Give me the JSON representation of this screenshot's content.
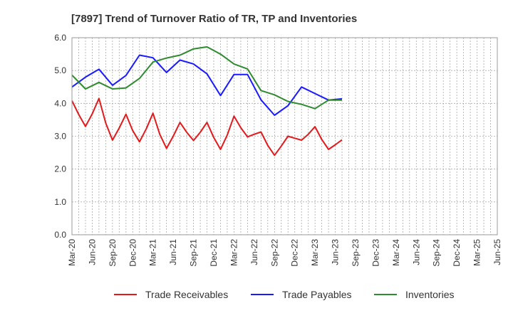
{
  "chart_data": {
    "type": "line",
    "title": "[7897]  Trend of Turnover Ratio of TR, TP and Inventories",
    "xlabel": "",
    "ylabel": "",
    "ylim": [
      0,
      6
    ],
    "yticks": [
      "0.0",
      "1.0",
      "2.0",
      "3.0",
      "4.0",
      "5.0",
      "6.0"
    ],
    "xtick_labels": [
      "Mar-20",
      "Jun-20",
      "Sep-20",
      "Dec-20",
      "Mar-21",
      "Jun-21",
      "Sep-21",
      "Dec-21",
      "Mar-22",
      "Jun-22",
      "Sep-22",
      "Dec-22",
      "Mar-23",
      "Jun-23",
      "Sep-23",
      "Dec-23",
      "Mar-24",
      "Jun-24",
      "Sep-24",
      "Dec-24",
      "Mar-25",
      "Jun-25"
    ],
    "grid": true,
    "legend_position": "bottom",
    "series": [
      {
        "name": "Trade Receivables",
        "color": "#e31a1c",
        "values": [
          4.08,
          3.66,
          3.3,
          3.68,
          4.15,
          3.4,
          2.88,
          3.25,
          3.67,
          3.17,
          2.83,
          3.22,
          3.7,
          3.06,
          2.63,
          3.0,
          3.42,
          3.12,
          2.87,
          3.12,
          3.42,
          2.96,
          2.6,
          3.04,
          3.61,
          3.26,
          2.98,
          3.06,
          3.13,
          2.72,
          2.42,
          2.7,
          3.0,
          2.94,
          2.88,
          3.06,
          3.29,
          2.9,
          2.6,
          2.74,
          2.89
        ]
      },
      {
        "name": "Trade Payables",
        "color": "#1a1aff",
        "values": [
          4.5,
          null,
          4.8,
          null,
          5.04,
          null,
          4.55,
          null,
          4.85,
          null,
          5.47,
          null,
          5.39,
          null,
          4.94,
          null,
          5.32,
          null,
          5.2,
          null,
          4.9,
          null,
          4.24,
          null,
          4.88,
          null,
          4.88,
          null,
          4.11,
          null,
          3.64,
          null,
          3.93,
          null,
          4.5,
          null,
          4.3,
          null,
          4.1,
          null,
          4.14
        ]
      },
      {
        "name": "Inventories",
        "color": "#2e8b2e",
        "values": [
          4.86,
          null,
          4.44,
          null,
          4.64,
          null,
          4.44,
          null,
          4.47,
          null,
          4.76,
          null,
          5.26,
          null,
          5.38,
          null,
          5.47,
          null,
          5.66,
          null,
          5.72,
          null,
          5.5,
          null,
          5.2,
          null,
          5.05,
          null,
          4.39,
          null,
          4.26,
          null,
          4.06,
          null,
          3.97,
          null,
          3.84,
          null,
          4.1,
          null,
          4.1
        ]
      }
    ]
  }
}
